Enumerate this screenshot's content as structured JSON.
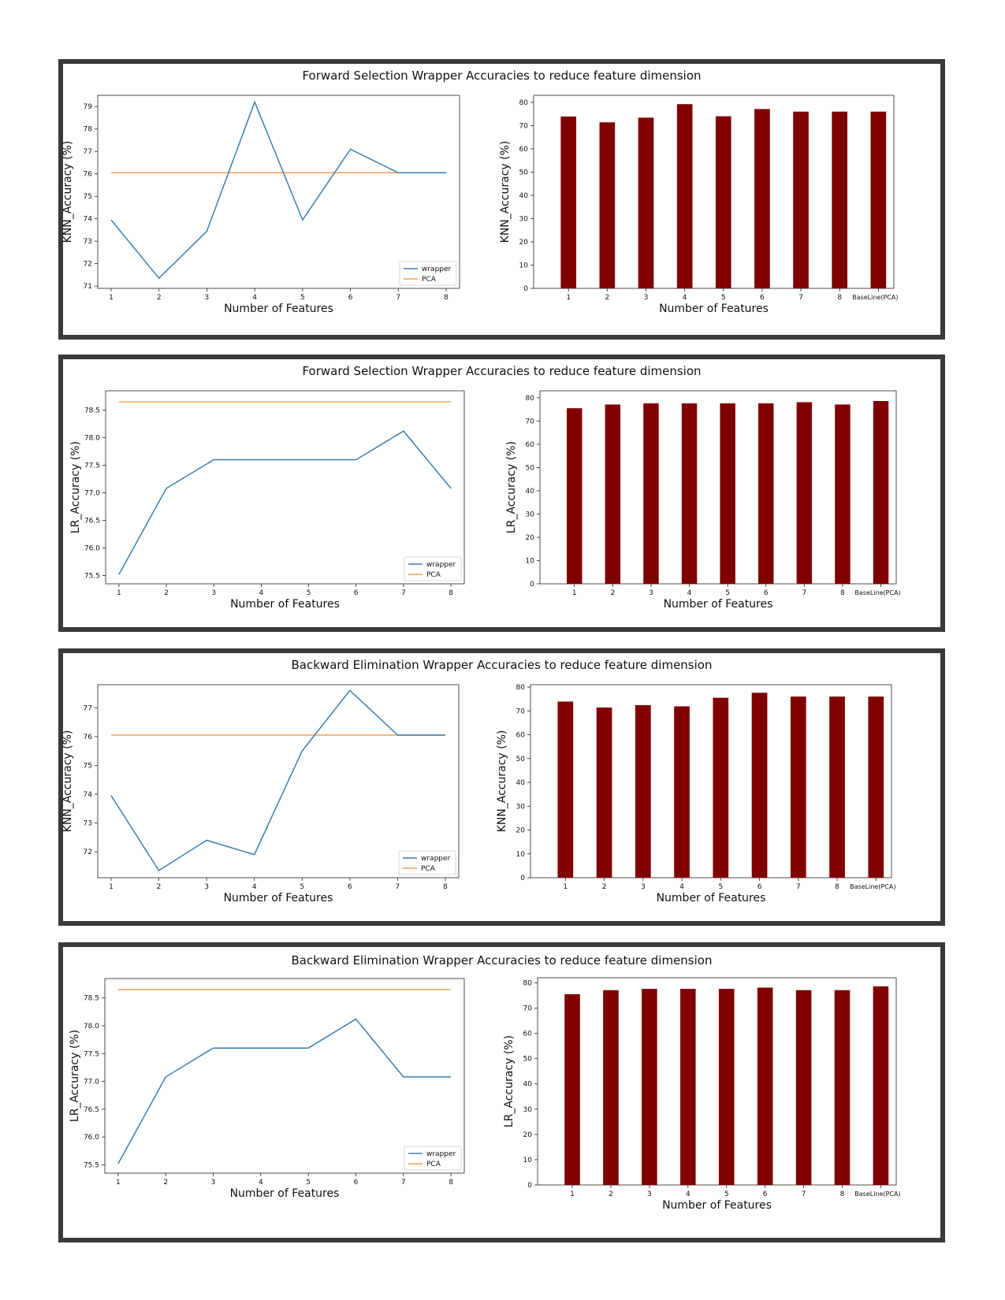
{
  "panels": [
    {
      "title": "Forward Selection Wrapper Accuracies to reduce feature dimension",
      "line": {
        "xlabel": "Number of Features",
        "ylabel": "KNN_Accuracy (%)",
        "ylim": [
          70.9,
          79.5
        ],
        "yticks": [
          "71",
          "72",
          "73",
          "74",
          "75",
          "76",
          "77",
          "78",
          "79"
        ],
        "ytick_values": [
          71,
          72,
          73,
          74,
          75,
          76,
          77,
          78,
          79
        ],
        "x": [
          1,
          2,
          3,
          4,
          5,
          6,
          7,
          8
        ],
        "xticks": [
          "1",
          "2",
          "3",
          "4",
          "5",
          "6",
          "7",
          "8"
        ],
        "wrapper": [
          73.95,
          71.35,
          73.45,
          79.2,
          73.95,
          77.1,
          76.05,
          76.05
        ],
        "pca": 76.05,
        "legend": [
          "wrapper",
          "PCA"
        ]
      },
      "bar": {
        "xlabel": "Number of Features",
        "ylabel": "KNN_Accuracy (%)",
        "ylim": [
          0,
          83
        ],
        "yticks": [
          "0",
          "10",
          "20",
          "30",
          "40",
          "50",
          "60",
          "70",
          "80"
        ],
        "ytick_values": [
          0,
          10,
          20,
          30,
          40,
          50,
          60,
          70,
          80
        ],
        "categories": [
          "1",
          "2",
          "3",
          "4",
          "5",
          "6",
          "7",
          "8",
          "BaseLine(PCA)"
        ],
        "values": [
          73.9,
          71.4,
          73.4,
          79.2,
          74.0,
          77.1,
          76.0,
          76.0,
          76.0
        ]
      }
    },
    {
      "title": "Forward Selection Wrapper Accuracies to reduce feature dimension",
      "line": {
        "xlabel": "Number of Features",
        "ylabel": "LR_Accuracy (%)",
        "ylim": [
          75.35,
          78.85
        ],
        "yticks": [
          "75.5",
          "76.0",
          "76.5",
          "77.0",
          "77.5",
          "78.0",
          "78.5"
        ],
        "ytick_values": [
          75.5,
          76.0,
          76.5,
          77.0,
          77.5,
          78.0,
          78.5
        ],
        "x": [
          1,
          2,
          3,
          4,
          5,
          6,
          7,
          8
        ],
        "xticks": [
          "1",
          "2",
          "3",
          "4",
          "5",
          "6",
          "7",
          "8"
        ],
        "wrapper": [
          75.52,
          77.08,
          77.6,
          77.6,
          77.6,
          77.6,
          78.12,
          77.08
        ],
        "pca": 78.65,
        "legend": [
          "wrapper",
          "PCA"
        ]
      },
      "bar": {
        "xlabel": "Number of Features",
        "ylabel": "LR_Accuracy (%)",
        "ylim": [
          0,
          83
        ],
        "yticks": [
          "0",
          "10",
          "20",
          "30",
          "40",
          "50",
          "60",
          "70",
          "80"
        ],
        "ytick_values": [
          0,
          10,
          20,
          30,
          40,
          50,
          60,
          70,
          80
        ],
        "categories": [
          "1",
          "2",
          "3",
          "4",
          "5",
          "6",
          "7",
          "8",
          "BaseLine(PCA)"
        ],
        "values": [
          75.5,
          77.1,
          77.6,
          77.6,
          77.6,
          77.6,
          78.1,
          77.1,
          78.6
        ]
      }
    },
    {
      "title": "Backward Elimination Wrapper Accuracies to reduce feature dimension",
      "line": {
        "xlabel": "Number of Features",
        "ylabel": "KNN_Accuracy (%)",
        "ylim": [
          71.1,
          77.8
        ],
        "yticks": [
          "72",
          "73",
          "74",
          "75",
          "76",
          "77"
        ],
        "ytick_values": [
          72,
          73,
          74,
          75,
          76,
          77
        ],
        "x": [
          1,
          2,
          3,
          4,
          5,
          6,
          7,
          8
        ],
        "xticks": [
          "1",
          "2",
          "3",
          "4",
          "5",
          "6",
          "7",
          "8"
        ],
        "wrapper": [
          73.95,
          71.35,
          72.4,
          71.9,
          75.5,
          77.6,
          76.05,
          76.05
        ],
        "pca": 76.05,
        "legend": [
          "wrapper",
          "PCA"
        ]
      },
      "bar": {
        "xlabel": "Number of Features",
        "ylabel": "KNN_Accuracy (%)",
        "ylim": [
          0,
          81
        ],
        "yticks": [
          "0",
          "10",
          "20",
          "30",
          "40",
          "50",
          "60",
          "70",
          "80"
        ],
        "ytick_values": [
          0,
          10,
          20,
          30,
          40,
          50,
          60,
          70,
          80
        ],
        "categories": [
          "1",
          "2",
          "3",
          "4",
          "5",
          "6",
          "7",
          "8",
          "BaseLine(PCA)"
        ],
        "values": [
          73.9,
          71.4,
          72.4,
          71.9,
          75.5,
          77.6,
          76.0,
          76.0,
          76.0
        ]
      }
    },
    {
      "title": "Backward Elimination Wrapper Accuracies to reduce feature dimension",
      "line": {
        "xlabel": "Number of Features",
        "ylabel": "LR_Accuracy (%)",
        "ylim": [
          75.35,
          78.85
        ],
        "yticks": [
          "75.5",
          "76.0",
          "76.5",
          "77.0",
          "77.5",
          "78.0",
          "78.5"
        ],
        "ytick_values": [
          75.5,
          76.0,
          76.5,
          77.0,
          77.5,
          78.0,
          78.5
        ],
        "x": [
          1,
          2,
          3,
          4,
          5,
          6,
          7,
          8
        ],
        "xticks": [
          "1",
          "2",
          "3",
          "4",
          "5",
          "6",
          "7",
          "8"
        ],
        "wrapper": [
          75.52,
          77.08,
          77.6,
          77.6,
          77.6,
          78.12,
          77.08,
          77.08
        ],
        "pca": 78.65,
        "legend": [
          "wrapper",
          "PCA"
        ]
      },
      "bar": {
        "xlabel": "Number of Features",
        "ylabel": "LR_Accuracy (%)",
        "ylim": [
          0,
          82
        ],
        "yticks": [
          "0",
          "10",
          "20",
          "30",
          "40",
          "50",
          "60",
          "70",
          "80"
        ],
        "ytick_values": [
          0,
          10,
          20,
          30,
          40,
          50,
          60,
          70,
          80
        ],
        "categories": [
          "1",
          "2",
          "3",
          "4",
          "5",
          "6",
          "7",
          "8",
          "BaseLine(PCA)"
        ],
        "values": [
          75.5,
          77.1,
          77.6,
          77.6,
          77.6,
          78.1,
          77.1,
          77.1,
          78.6
        ]
      }
    }
  ],
  "colors": {
    "wrapper": "#3a7eb0",
    "pca": "#f5a155",
    "bar": "#800000",
    "frame": "#3a3a3a"
  }
}
